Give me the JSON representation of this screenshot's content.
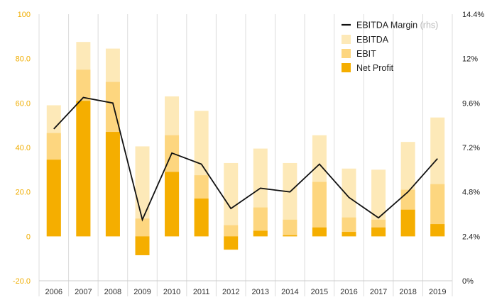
{
  "chart_data": {
    "type": "bar",
    "categories": [
      "2006",
      "2007",
      "2008",
      "2009",
      "2010",
      "2011",
      "2012",
      "2013",
      "2014",
      "2015",
      "2016",
      "2017",
      "2018",
      "2019"
    ],
    "series": [
      {
        "name": "EBITDA",
        "chart_type": "bar",
        "axis": "left",
        "color": "#fde9b8",
        "values": [
          59,
          87.5,
          84.5,
          40.5,
          63,
          56.5,
          33,
          39.5,
          33,
          45.5,
          30.5,
          30,
          42.5,
          53.5
        ]
      },
      {
        "name": "EBIT",
        "chart_type": "bar",
        "axis": "left",
        "color": "#fdd67f",
        "values": [
          46.5,
          75,
          69.5,
          8,
          45.5,
          27.5,
          5,
          13,
          7.5,
          24.5,
          8.5,
          7.5,
          21,
          23.5
        ]
      },
      {
        "name": "Net Profit",
        "chart_type": "bar",
        "axis": "left",
        "color": "#f5ae00",
        "values": [
          34.5,
          61,
          47,
          -8.5,
          29,
          17,
          -6,
          2.5,
          0.5,
          4,
          2,
          4,
          12,
          5.5
        ]
      },
      {
        "name": "EBITDA Margin",
        "name_note": "(rhs)",
        "chart_type": "line",
        "axis": "right",
        "color": "#111111",
        "values": [
          8.2,
          9.9,
          9.6,
          3.3,
          6.9,
          6.3,
          3.9,
          5.0,
          4.8,
          6.3,
          4.5,
          3.4,
          4.8,
          6.6
        ]
      }
    ],
    "y_left": {
      "ylim": [
        -20,
        100
      ],
      "ticks": [
        100,
        80,
        60,
        40,
        20,
        0,
        -20
      ],
      "tick_labels": [
        "100",
        "80.0",
        "60.0",
        "40.0",
        "20.0",
        "0",
        "-20.0"
      ]
    },
    "y_right": {
      "ylim": [
        0,
        14.4
      ],
      "ticks": [
        14.4,
        12,
        9.6,
        7.2,
        4.8,
        2.4,
        0
      ],
      "tick_labels": [
        "14.4%",
        "12%",
        "9.6%",
        "7.2%",
        "4.8%",
        "2.4%",
        "0%"
      ]
    },
    "grid": "vertical",
    "legend_position": "top-right",
    "legend": [
      "EBITDA Margin",
      "EBITDA",
      "EBIT",
      "Net Profit"
    ]
  }
}
